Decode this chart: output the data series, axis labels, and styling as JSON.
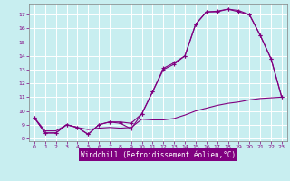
{
  "xlabel": "Windchill (Refroidissement éolien,°C)",
  "background_color": "#c8eef0",
  "xlabel_bg_color": "#800080",
  "xlabel_text_color": "#ffffff",
  "grid_color": "#ffffff",
  "line_color": "#800080",
  "spine_color": "#808080",
  "tick_color": "#800080",
  "xlim": [
    -0.5,
    23.5
  ],
  "ylim": [
    7.8,
    17.8
  ],
  "yticks": [
    8,
    9,
    10,
    11,
    12,
    13,
    14,
    15,
    16,
    17
  ],
  "xticks": [
    0,
    1,
    2,
    3,
    4,
    5,
    6,
    7,
    8,
    9,
    10,
    11,
    12,
    13,
    14,
    15,
    16,
    17,
    18,
    19,
    20,
    21,
    22,
    23
  ],
  "line1_x": [
    0,
    1,
    2,
    3,
    4,
    5,
    6,
    7,
    8,
    9,
    10,
    11,
    12,
    13,
    14,
    15,
    16,
    17,
    18,
    19,
    20,
    21,
    22,
    23
  ],
  "line1_y": [
    9.5,
    8.4,
    8.4,
    9.0,
    8.8,
    8.3,
    9.0,
    9.2,
    9.2,
    9.1,
    9.8,
    11.4,
    13.0,
    13.4,
    14.0,
    16.3,
    17.2,
    17.2,
    17.4,
    17.2,
    17.0,
    15.5,
    13.8,
    11.0
  ],
  "line2_x": [
    0,
    1,
    2,
    3,
    4,
    5,
    6,
    7,
    8,
    9,
    10,
    11,
    12,
    13,
    14,
    15,
    16,
    17,
    18,
    19,
    20,
    21,
    22,
    23
  ],
  "line2_y": [
    9.5,
    8.55,
    8.55,
    9.0,
    8.8,
    8.65,
    8.75,
    8.8,
    8.75,
    8.8,
    9.4,
    9.35,
    9.35,
    9.45,
    9.7,
    10.0,
    10.2,
    10.4,
    10.55,
    10.65,
    10.8,
    10.9,
    10.95,
    11.0
  ],
  "line3_x": [
    0,
    1,
    2,
    3,
    4,
    5,
    6,
    7,
    8,
    9,
    10,
    11,
    12,
    13,
    14,
    15,
    16,
    17,
    18,
    19,
    20,
    21,
    22,
    23
  ],
  "line3_y": [
    9.5,
    8.4,
    8.4,
    9.0,
    8.8,
    8.3,
    9.0,
    9.2,
    9.1,
    8.7,
    9.8,
    11.4,
    13.1,
    13.5,
    14.0,
    16.3,
    17.2,
    17.25,
    17.4,
    17.3,
    17.0,
    15.5,
    13.8,
    11.0
  ]
}
